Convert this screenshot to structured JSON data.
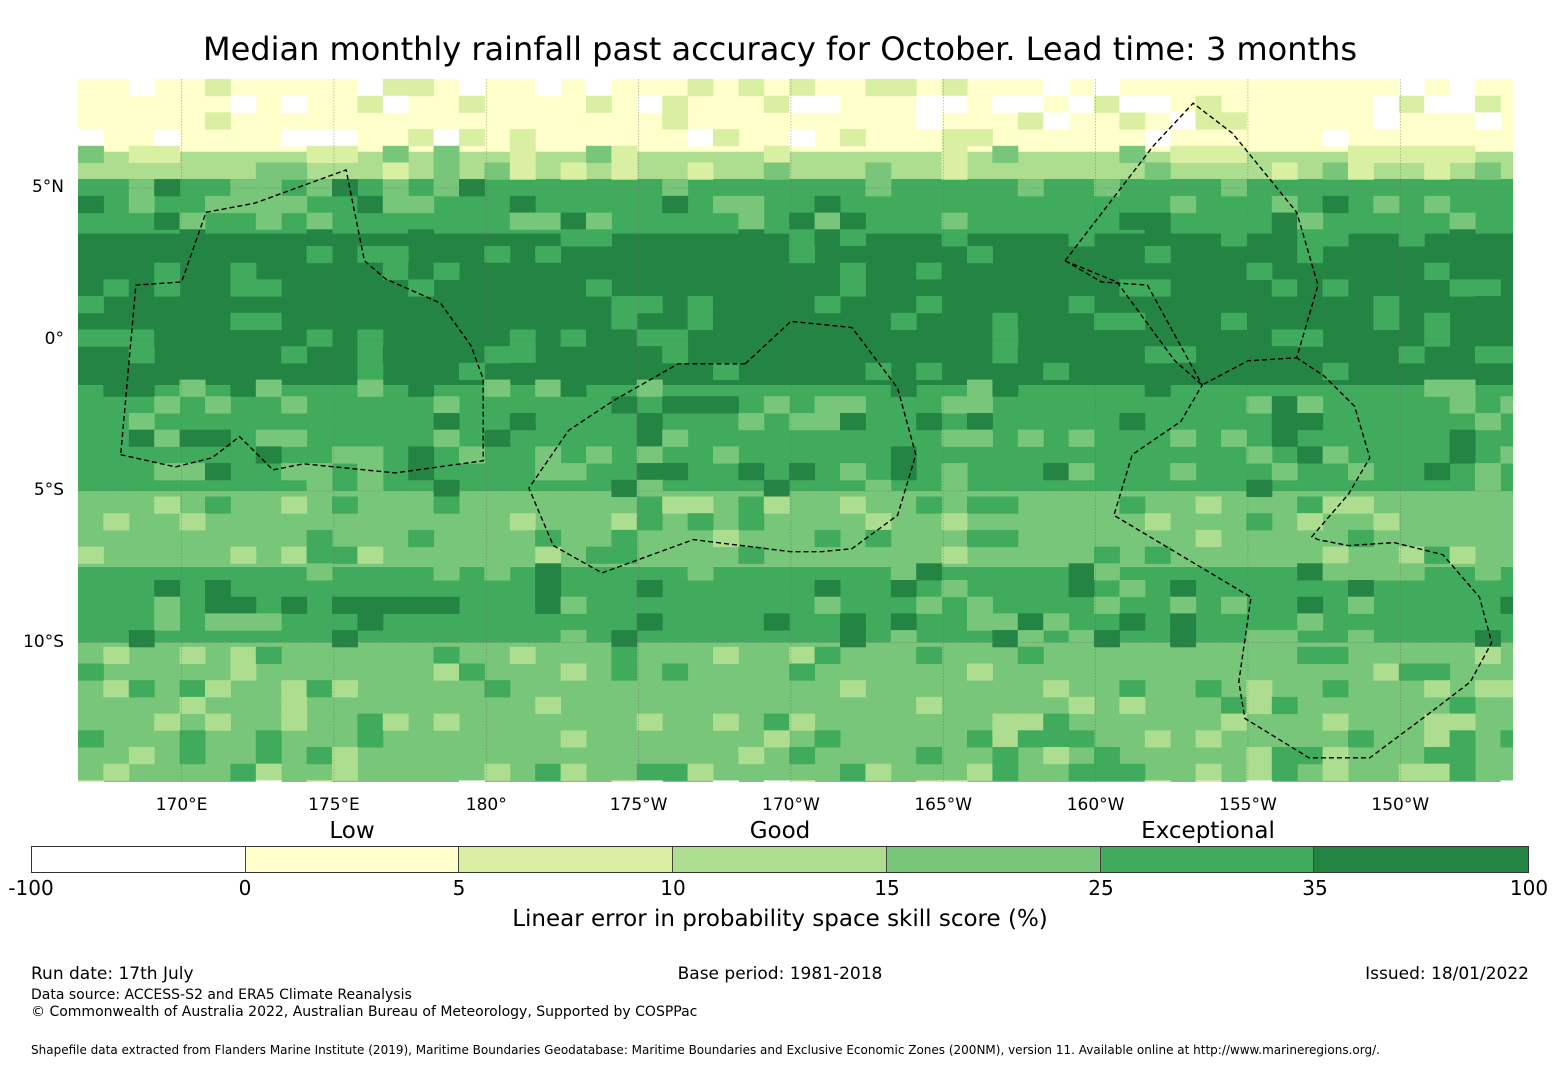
{
  "title": "Median monthly rainfall past accuracy for October. Lead time: 3 months",
  "map": {
    "lon_range": [
      166.6,
      213.7
    ],
    "lat_range": [
      -14.6,
      8.6
    ],
    "lat_ticks": [
      {
        "lat": 5,
        "label": "5°N"
      },
      {
        "lat": 0,
        "label": "0°"
      },
      {
        "lat": -5,
        "label": "5°S"
      },
      {
        "lat": -10,
        "label": "10°S"
      }
    ],
    "lon_ticks": [
      {
        "lon": 170,
        "label": "170°E"
      },
      {
        "lon": 175,
        "label": "175°E"
      },
      {
        "lon": 180,
        "label": "180°"
      },
      {
        "lon": 185,
        "label": "175°W"
      },
      {
        "lon": 190,
        "label": "170°W"
      },
      {
        "lon": 195,
        "label": "165°W"
      },
      {
        "lon": 200,
        "label": "160°W"
      },
      {
        "lon": 205,
        "label": "155°W"
      },
      {
        "lon": 210,
        "label": "150°W"
      }
    ],
    "skill_bands": [
      {
        "lat_from": 8.6,
        "lat_to": 6.2,
        "level": 1
      },
      {
        "lat_from": 6.2,
        "lat_to": 5.3,
        "level": 3
      },
      {
        "lat_from": 5.3,
        "lat_to": 3.5,
        "level": 5
      },
      {
        "lat_from": 3.5,
        "lat_to": -1.5,
        "level": 6
      },
      {
        "lat_from": -1.5,
        "lat_to": -5.0,
        "level": 5
      },
      {
        "lat_from": -5.0,
        "lat_to": -7.5,
        "level": 4
      },
      {
        "lat_from": -7.5,
        "lat_to": -10.0,
        "level": 5
      },
      {
        "lat_from": -10.0,
        "lat_to": -14.6,
        "level": 4
      }
    ],
    "eez_outlines": [
      [
        [
          168.0,
          -3.8
        ],
        [
          169.8,
          -4.2
        ],
        [
          171.0,
          -3.9
        ],
        [
          171.9,
          -3.2
        ],
        [
          173.0,
          -4.3
        ],
        [
          174.0,
          -4.1
        ],
        [
          177.0,
          -4.4
        ],
        [
          179.9,
          -4.0
        ],
        [
          179.9,
          -1.3
        ],
        [
          179.5,
          -0.2
        ],
        [
          178.5,
          1.2
        ],
        [
          176.7,
          2.0
        ],
        [
          176.0,
          2.6
        ],
        [
          175.4,
          5.6
        ],
        [
          172.4,
          4.5
        ],
        [
          170.8,
          4.2
        ],
        [
          170.0,
          1.9
        ],
        [
          168.5,
          1.8
        ],
        [
          168.0,
          -3.8
        ]
      ],
      [
        [
          188.5,
          -0.8
        ],
        [
          190.0,
          0.6
        ],
        [
          192.0,
          0.4
        ],
        [
          193.5,
          -1.6
        ],
        [
          194.1,
          -3.8
        ],
        [
          193.5,
          -5.8
        ],
        [
          192.0,
          -6.9
        ],
        [
          191.0,
          -7.0
        ],
        [
          190.0,
          -7.0
        ],
        [
          186.8,
          -6.6
        ],
        [
          183.8,
          -7.7
        ],
        [
          182.2,
          -6.8
        ],
        [
          181.4,
          -4.9
        ],
        [
          182.7,
          -3.0
        ],
        [
          184.2,
          -2.0
        ],
        [
          186.3,
          -0.8
        ],
        [
          188.5,
          -0.8
        ]
      ],
      [
        [
          199.0,
          2.6
        ],
        [
          201.9,
          6.4
        ],
        [
          203.2,
          7.8
        ],
        [
          204.5,
          6.8
        ],
        [
          206.6,
          4.2
        ],
        [
          207.3,
          1.8
        ],
        [
          206.6,
          -0.6
        ],
        [
          205.0,
          -0.7
        ],
        [
          203.5,
          -1.5
        ],
        [
          202.6,
          -0.7
        ],
        [
          200.7,
          1.9
        ],
        [
          199.0,
          2.6
        ]
      ],
      [
        [
          199.0,
          2.6
        ],
        [
          200.2,
          1.9
        ],
        [
          201.7,
          1.8
        ],
        [
          203.5,
          -1.5
        ],
        [
          202.8,
          -2.7
        ],
        [
          201.2,
          -3.8
        ],
        [
          200.6,
          -5.8
        ],
        [
          205.1,
          -8.5
        ],
        [
          204.7,
          -11.3
        ],
        [
          204.9,
          -12.5
        ],
        [
          207.0,
          -13.8
        ],
        [
          209.0,
          -13.8
        ],
        [
          211.0,
          -12.3
        ],
        [
          212.3,
          -11.3
        ],
        [
          213.0,
          -10.0
        ],
        [
          212.6,
          -8.5
        ],
        [
          211.4,
          -7.1
        ],
        [
          209.8,
          -6.7
        ],
        [
          208.3,
          -6.8
        ],
        [
          207.3,
          -6.6
        ],
        [
          207.1,
          -6.5
        ],
        [
          208.3,
          -5.1
        ],
        [
          209.0,
          -3.9
        ],
        [
          208.5,
          -2.2
        ],
        [
          207.5,
          -1.2
        ],
        [
          206.6,
          -0.6
        ]
      ]
    ]
  },
  "categories": [
    {
      "label": "Low",
      "value": 2.5
    },
    {
      "label": "Good",
      "value": 12.5
    },
    {
      "label": "Exceptional",
      "value": 30
    }
  ],
  "colorbar": {
    "bins": [
      {
        "from": -100,
        "to": 0,
        "color": "#ffffff"
      },
      {
        "from": 0,
        "to": 5,
        "color": "#ffffcc"
      },
      {
        "from": 5,
        "to": 10,
        "color": "#d9f0a3"
      },
      {
        "from": 10,
        "to": 15,
        "color": "#addd8e"
      },
      {
        "from": 15,
        "to": 25,
        "color": "#78c679"
      },
      {
        "from": 25,
        "to": 35,
        "color": "#41ab5d"
      },
      {
        "from": 35,
        "to": 100,
        "color": "#238443"
      }
    ],
    "ticks": [
      "-100",
      "0",
      "5",
      "10",
      "15",
      "25",
      "35",
      "100"
    ],
    "label": "Linear error in probability space skill score (%)"
  },
  "footer": {
    "run_date": "Run date: 17th July",
    "base_period": "Base period: 1981-2018",
    "issued": "Issued: 18/01/2022",
    "data_source": "Data source: ACCESS-S2 and ERA5 Climate Reanalysis",
    "copyright": "© Commonwealth of Australia 2022, Australian Bureau of Meteorology, Supported by COSPPac",
    "shapefile": "Shapefile data extracted from Flanders Marine Institute (2019), Maritime Boundaries Geodatabase: Maritime Boundaries and Exclusive Economic Zones (200NM), version 11. Available online at http://www.marineregions.org/."
  }
}
